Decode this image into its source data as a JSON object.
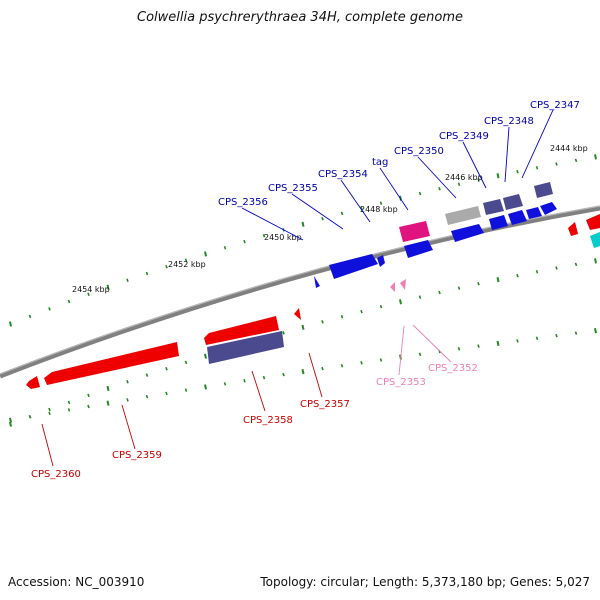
{
  "title": "Colwellia psychrerythraea 34H, complete genome",
  "footer": {
    "accession": "Accession: NC_003910",
    "summary": "Topology: circular; Length: 5,373,180 bp; Genes: 5,027"
  },
  "colors": {
    "backbone": "#808080",
    "forward_gene": "#0000ee",
    "forward_gene_slate": "#4b4a8f",
    "reverse_gene": "#ee0000",
    "reverse_gene_slate": "#4b4a8f",
    "trna": "#ff1493",
    "pseudo": "#aaaaaa",
    "rrna": "#00cccc",
    "label_forward": "#0000aa",
    "label_reverse": "#cc0000",
    "label_pink": "#ee7fb4",
    "tick": "#228b22"
  },
  "scale_labels": [
    "2444 kbp",
    "2446 kbp",
    "2448 kbp",
    "2450 kbp",
    "2452 kbp",
    "2454 kbp"
  ],
  "genes_forward": [
    {
      "name": "CPS_2347"
    },
    {
      "name": "CPS_2348"
    },
    {
      "name": "CPS_2349"
    },
    {
      "name": "CPS_2350"
    },
    {
      "name": "tag"
    },
    {
      "name": "CPS_2354"
    },
    {
      "name": "CPS_2355"
    },
    {
      "name": "CPS_2356"
    }
  ],
  "genes_reverse": [
    {
      "name": "CPS_2352"
    },
    {
      "name": "CPS_2353"
    },
    {
      "name": "CPS_2357"
    },
    {
      "name": "CPS_2358"
    },
    {
      "name": "CPS_2359"
    },
    {
      "name": "CPS_2360"
    }
  ]
}
